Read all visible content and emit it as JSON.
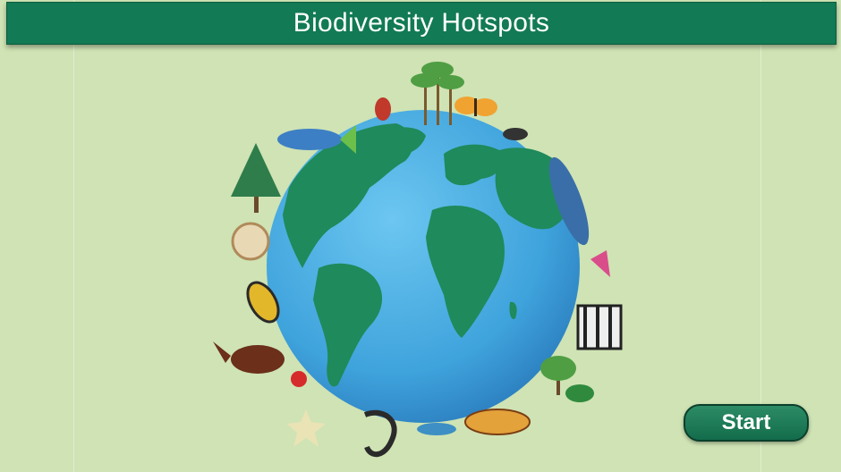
{
  "header": {
    "title": "Biodiversity Hotspots"
  },
  "actions": {
    "start_label": "Start"
  },
  "colors": {
    "title_bar": "#127a54",
    "background": "#cfe3b4",
    "ocean": "#3fa8df",
    "land": "#1f8a5b",
    "start_button": "#1f7a58"
  },
  "illustration": {
    "subject": "globe-with-wildlife",
    "icons": [
      "tree-icon",
      "fish-icon",
      "beetle-icon",
      "palm-trees-icon",
      "butterfly-icon",
      "scorpion-icon",
      "dolphin-icon",
      "nautilus-shell-icon",
      "wasp-icon",
      "moth-icon",
      "bird-icon",
      "ladybug-icon",
      "zebra-icon",
      "tree-icon",
      "frog-icon",
      "lizard-icon",
      "seahorse-icon",
      "starfish-icon"
    ]
  }
}
